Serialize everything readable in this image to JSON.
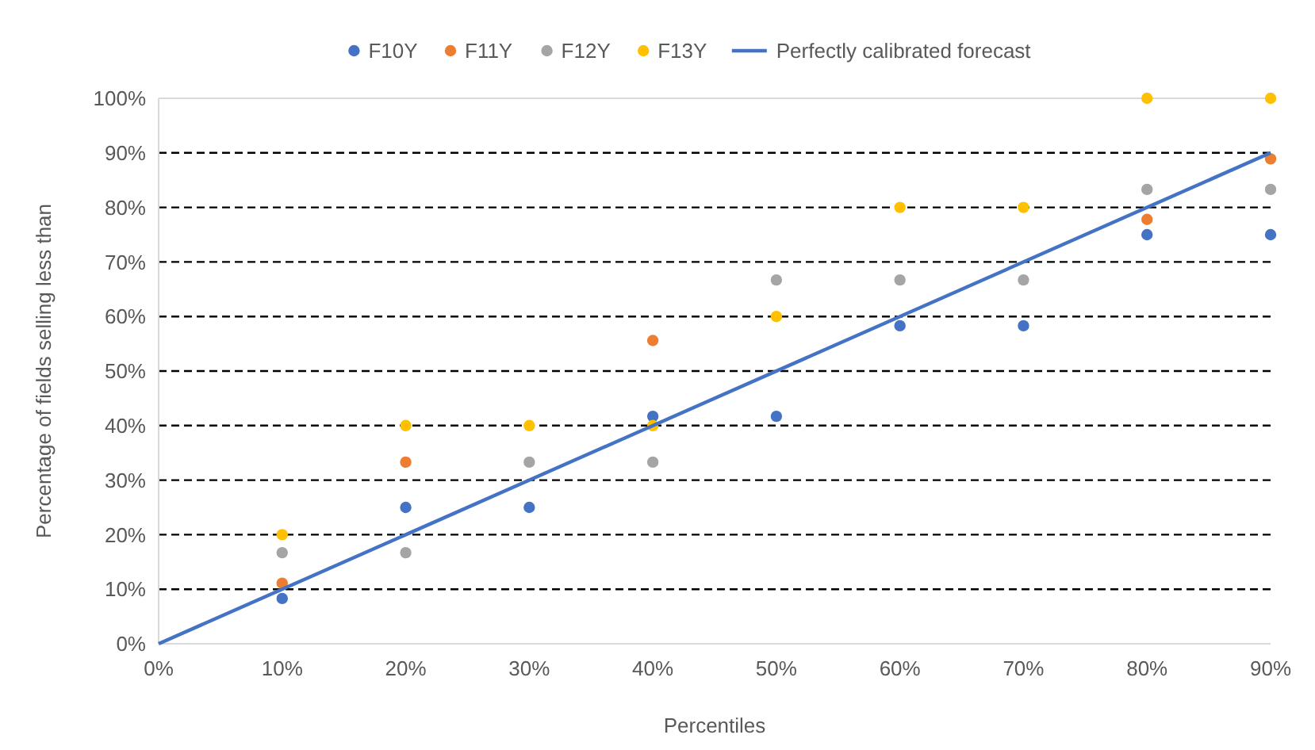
{
  "chart_data": {
    "type": "scatter",
    "xlabel": "Percentiles",
    "ylabel": "Percentage of fields selling less than",
    "x": [
      10,
      20,
      30,
      40,
      50,
      60,
      70,
      80,
      90
    ],
    "series": [
      {
        "name": "F10Y",
        "color": "#4472c4",
        "values": [
          8.3,
          25,
          25,
          41.7,
          41.7,
          58.3,
          58.3,
          75,
          75
        ]
      },
      {
        "name": "F11Y",
        "color": "#ed7d31",
        "values": [
          11.1,
          33.3,
          null,
          55.6,
          null,
          null,
          null,
          77.8,
          88.9
        ]
      },
      {
        "name": "F12Y",
        "color": "#a5a5a5",
        "values": [
          16.7,
          16.7,
          33.3,
          33.3,
          66.7,
          66.7,
          66.7,
          83.3,
          83.3
        ]
      },
      {
        "name": "F13Y",
        "color": "#ffc000",
        "values": [
          20,
          40,
          40,
          40,
          60,
          80,
          80,
          100,
          100
        ]
      },
      {
        "name": "Perfectly calibrated forecast",
        "type": "line",
        "color": "#4472c4",
        "x": [
          0,
          90
        ],
        "values": [
          0,
          90
        ],
        "marker": "none"
      }
    ],
    "xlim": [
      0,
      90
    ],
    "ylim": [
      0,
      100
    ],
    "xticks": [
      {
        "value": 0,
        "label": "0%"
      },
      {
        "value": 10,
        "label": "10%"
      },
      {
        "value": 20,
        "label": "20%"
      },
      {
        "value": 30,
        "label": "30%"
      },
      {
        "value": 40,
        "label": "40%"
      },
      {
        "value": 50,
        "label": "50%"
      },
      {
        "value": 60,
        "label": "60%"
      },
      {
        "value": 70,
        "label": "70%"
      },
      {
        "value": 80,
        "label": "80%"
      },
      {
        "value": 90,
        "label": "90%"
      }
    ],
    "yticks": [
      {
        "value": 0,
        "label": "0%"
      },
      {
        "value": 10,
        "label": "10%"
      },
      {
        "value": 20,
        "label": "20%"
      },
      {
        "value": 30,
        "label": "30%"
      },
      {
        "value": 40,
        "label": "40%"
      },
      {
        "value": 50,
        "label": "50%"
      },
      {
        "value": 60,
        "label": "60%"
      },
      {
        "value": 70,
        "label": "70%"
      },
      {
        "value": 80,
        "label": "80%"
      },
      {
        "value": 90,
        "label": "90%"
      },
      {
        "value": 100,
        "label": "100%"
      }
    ],
    "grid": "y",
    "legend": "top",
    "marker": "circle"
  }
}
